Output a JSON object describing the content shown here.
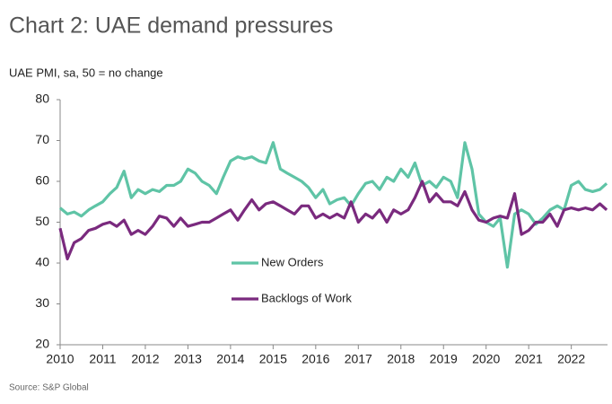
{
  "chart_data": {
    "type": "line",
    "title": "Chart 2: UAE demand pressures",
    "y_axis_label": "UAE PMI, sa, 50 = no change",
    "source": "Source: S&P Global",
    "x": [
      2010,
      2010.17,
      2010.33,
      2010.5,
      2010.67,
      2010.83,
      2011,
      2011.17,
      2011.33,
      2011.5,
      2011.67,
      2011.83,
      2012,
      2012.17,
      2012.33,
      2012.5,
      2012.67,
      2012.83,
      2013,
      2013.17,
      2013.33,
      2013.5,
      2013.67,
      2013.83,
      2014,
      2014.17,
      2014.33,
      2014.5,
      2014.67,
      2014.83,
      2015,
      2015.17,
      2015.33,
      2015.5,
      2015.67,
      2015.83,
      2016,
      2016.17,
      2016.33,
      2016.5,
      2016.67,
      2016.83,
      2017,
      2017.17,
      2017.33,
      2017.5,
      2017.67,
      2017.83,
      2018,
      2018.17,
      2018.33,
      2018.5,
      2018.67,
      2018.83,
      2019,
      2019.17,
      2019.33,
      2019.5,
      2019.67,
      2019.83,
      2020,
      2020.17,
      2020.33,
      2020.5,
      2020.67,
      2020.83,
      2021,
      2021.17,
      2021.33,
      2021.5,
      2021.67,
      2021.83,
      2022,
      2022.17,
      2022.33,
      2022.5,
      2022.67,
      2022.83
    ],
    "series": [
      {
        "name": "New Orders",
        "color": "#5fc4a6",
        "values": [
          53.5,
          52,
          52.5,
          51.5,
          53,
          54,
          55,
          57,
          58.5,
          62.5,
          56,
          58,
          57,
          58,
          57.5,
          59,
          59,
          60,
          63,
          62,
          60,
          59,
          57,
          61,
          65,
          66,
          65.5,
          66,
          65,
          64.5,
          69.5,
          63,
          62,
          61,
          60,
          58.5,
          56,
          58,
          54.5,
          55.5,
          56,
          54,
          57,
          59.5,
          60,
          58,
          61,
          60,
          63,
          61,
          64.5,
          59,
          60,
          58.5,
          61,
          60,
          56,
          69.5,
          63,
          52,
          50,
          49,
          51,
          39,
          52,
          53,
          52,
          49.5,
          51,
          53,
          54,
          53,
          59,
          60,
          58,
          57.5,
          58,
          59.5
        ]
      },
      {
        "name": "Backlogs of Work",
        "color": "#7a2a7e",
        "values": [
          48.5,
          41,
          45,
          46,
          48,
          48.5,
          49.5,
          50,
          49,
          50.5,
          47,
          48,
          47,
          49,
          51.5,
          51,
          49,
          51,
          49,
          49.5,
          50,
          50,
          51,
          52,
          53,
          50.5,
          53,
          55.5,
          53,
          54.5,
          55,
          54,
          53,
          52,
          54,
          54,
          51,
          52,
          51,
          52,
          51,
          55,
          50,
          52,
          51,
          53,
          50,
          53,
          52,
          53,
          56,
          60,
          55,
          57,
          55,
          55,
          54,
          57.5,
          53,
          50.5,
          50,
          51,
          51.5,
          51,
          57,
          47,
          48,
          50,
          50,
          52,
          49,
          53,
          53.5,
          53,
          53.5,
          53,
          54.5,
          53
        ]
      }
    ],
    "xlim": [
      2010,
      2022.85
    ],
    "xticks": [
      2010,
      2011,
      2012,
      2013,
      2014,
      2015,
      2016,
      2017,
      2018,
      2019,
      2020,
      2021,
      2022
    ],
    "ylim": [
      20,
      80
    ],
    "yticks": [
      20,
      30,
      40,
      50,
      60,
      70,
      80
    ],
    "grid": false
  }
}
